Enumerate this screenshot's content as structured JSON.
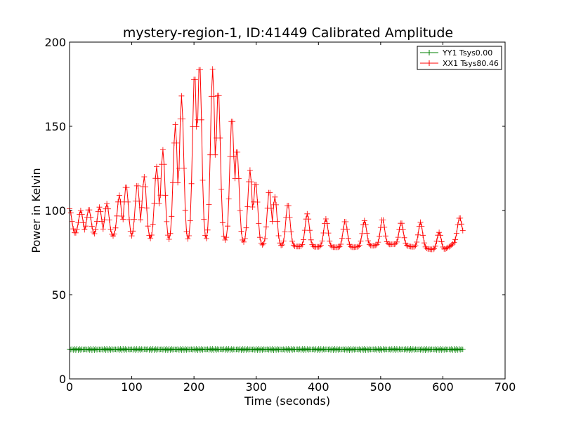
{
  "chart_data": {
    "type": "line",
    "title": "mystery-region-1, ID:41449 Calibrated Amplitude",
    "xlabel": "Time (seconds)",
    "ylabel": "Power in Kelvin",
    "xlim": [
      0,
      700
    ],
    "ylim": [
      0,
      200
    ],
    "xticks": [
      0,
      100,
      200,
      300,
      400,
      500,
      600,
      700
    ],
    "yticks": [
      0,
      50,
      100,
      150,
      200
    ],
    "grid": false,
    "legend_position": "top-right",
    "marker": "+",
    "sample_interval": 2,
    "x_end": 632,
    "series": [
      {
        "name": "YY1 Tsys0.00",
        "color": "#008000",
        "baseline": 17.5,
        "peaks": []
      },
      {
        "name": "XX1 Tsys80.46",
        "color": "#ff0000",
        "baseline_points": [
          [
            0,
            86
          ],
          [
            100,
            84
          ],
          [
            150,
            82
          ],
          [
            250,
            82
          ],
          [
            320,
            79
          ],
          [
            450,
            78
          ],
          [
            520,
            80
          ],
          [
            560,
            78
          ],
          [
            600,
            76
          ],
          [
            632,
            84
          ]
        ],
        "peaks": [
          [
            0,
            101
          ],
          [
            18,
            100
          ],
          [
            31,
            101
          ],
          [
            48,
            102
          ],
          [
            60,
            104
          ],
          [
            80,
            109
          ],
          [
            91,
            115
          ],
          [
            109,
            116
          ],
          [
            120,
            120
          ],
          [
            140,
            126
          ],
          [
            150,
            136
          ],
          [
            170,
            151
          ],
          [
            180,
            168
          ],
          [
            201,
            182
          ],
          [
            209,
            188
          ],
          [
            230,
            184
          ],
          [
            239,
            172
          ],
          [
            261,
            156
          ],
          [
            269,
            137
          ],
          [
            290,
            124
          ],
          [
            299,
            117
          ],
          [
            321,
            112
          ],
          [
            330,
            108
          ],
          [
            351,
            104
          ],
          [
            382,
            98
          ],
          [
            412,
            95
          ],
          [
            443,
            94
          ],
          [
            474,
            94
          ],
          [
            503,
            95
          ],
          [
            533,
            93
          ],
          [
            564,
            93
          ],
          [
            594,
            87
          ],
          [
            627,
            96
          ]
        ]
      }
    ]
  }
}
